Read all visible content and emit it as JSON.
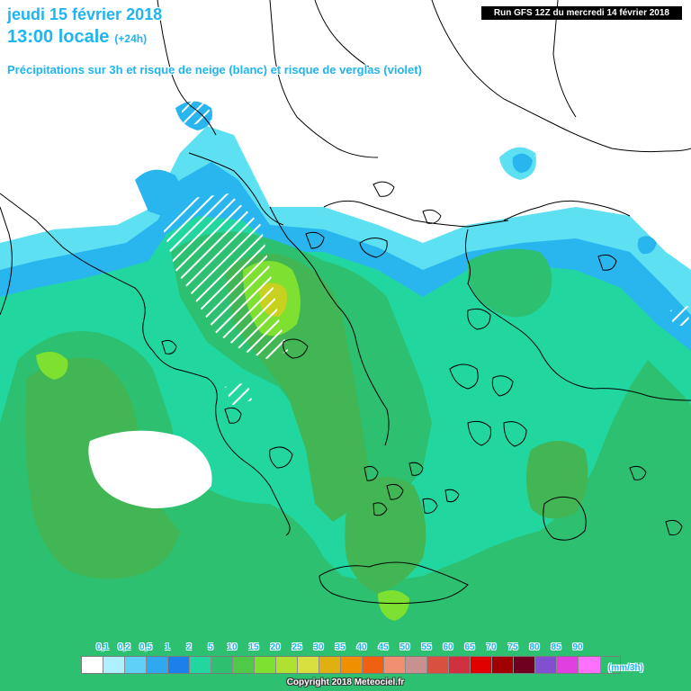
{
  "header": {
    "date_line": "jeudi 15 février 2018",
    "time_line": "13:00 locale",
    "offset": "(+24h)",
    "subtitle": "Précipitations sur 3h et risque de neige (blanc) et risque de verglas (violet)",
    "run_banner": "Run GFS 12Z du mercredi 14 février 2018"
  },
  "legend": {
    "unit": "(mm/3h)",
    "ticks": [
      "0,1",
      "0,2",
      "0,5",
      "1",
      "2",
      "5",
      "10",
      "15",
      "20",
      "25",
      "30",
      "35",
      "40",
      "45",
      "50",
      "55",
      "60",
      "65",
      "70",
      "75",
      "80",
      "85",
      "90"
    ],
    "colors": [
      "#ffffff",
      "#aef0ff",
      "#5fd0f8",
      "#2fa8f0",
      "#1c80ea",
      "#22d6a0",
      "#2cc070",
      "#50c848",
      "#7ee030",
      "#b0e030",
      "#d8e040",
      "#e0b010",
      "#f09000",
      "#f06010",
      "#f09070",
      "#c89090",
      "#d85040",
      "#d03040",
      "#e00000",
      "#a00000",
      "#700020",
      "#8050d0",
      "#e040e0",
      "#ff70ff"
    ],
    "map_colors": {
      "sea_light": "#5ce0f2",
      "sea_mid": "#29b6ef",
      "green_light": "#22d6a0",
      "green_mid": "#2cc070",
      "green_dark": "#42b554",
      "green_lime": "#7ee030",
      "yellow": "#c8d020",
      "snow_hatch": "#ffffff"
    }
  },
  "footer": {
    "copyright": "Copyright 2018 Meteociel.fr"
  }
}
